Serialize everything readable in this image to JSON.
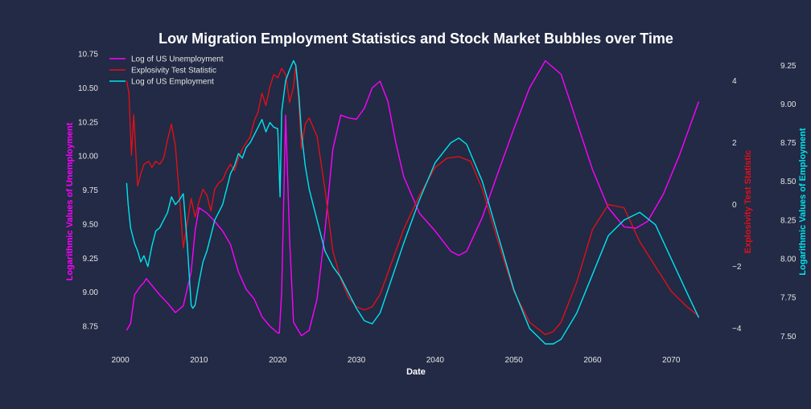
{
  "chart_data": {
    "type": "line",
    "title": "Low Migration Employment Statistics and Stock Market Bubbles over Time",
    "xlabel": "Date",
    "xlim": [
      1998,
      2076
    ],
    "x_ticks": [
      2000,
      2010,
      2020,
      2030,
      2040,
      2050,
      2060,
      2070
    ],
    "grid": false,
    "legend_placement": "top-left",
    "axes": {
      "left": {
        "label": "Logarithmic Values of Unemployment",
        "color": "#ff00ff",
        "ylim": [
          8.62,
          10.78
        ],
        "ticks": [
          8.75,
          9.0,
          9.25,
          9.5,
          9.75,
          10.0,
          10.25,
          10.5,
          10.75
        ],
        "tick_labels": [
          "8.75",
          "9.00",
          "9.25",
          "9.50",
          "9.75",
          "10.00",
          "10.25",
          "10.50",
          "10.75"
        ]
      },
      "right1": {
        "label": "Explosivity Test Statistic",
        "color": "#e0101a",
        "ylim": [
          -4.5,
          5.0
        ],
        "ticks": [
          -4,
          -2,
          0,
          2,
          4
        ],
        "tick_labels": [
          "−4",
          "−2",
          "0",
          "2",
          "4"
        ]
      },
      "right2": {
        "label": "Logarithmic Values of Employment",
        "color": "#00e5ee",
        "ylim": [
          7.45,
          9.35
        ],
        "ticks": [
          7.5,
          7.75,
          8.0,
          8.25,
          8.5,
          8.75,
          9.0,
          9.25
        ],
        "tick_labels": [
          "7.50",
          "7.75",
          "8.00",
          "8.25",
          "8.50",
          "8.75",
          "9.00",
          "9.25"
        ]
      }
    },
    "series": [
      {
        "name": "Log of US Unemployment",
        "axis": "left",
        "color": "#ff00ff",
        "x": [
          2000.8,
          2001.3,
          2001.8,
          2002.5,
          2003.0,
          2003.3,
          2004.0,
          2005.0,
          2006.0,
          2007.0,
          2008.0,
          2009.0,
          2009.5,
          2010.0,
          2011.0,
          2012.0,
          2013.0,
          2014.0,
          2015.0,
          2016.0,
          2017.0,
          2018.0,
          2019.0,
          2020.0,
          2020.2,
          2020.5,
          2021.0,
          2021.5,
          2022.0,
          2023.0,
          2024.0,
          2025.0,
          2026.0,
          2027.0,
          2028.0,
          2029.0,
          2030.0,
          2031.0,
          2032.0,
          2033.0,
          2034.0,
          2035.0,
          2036.0,
          2038.0,
          2040.0,
          2042.0,
          2043.0,
          2044.0,
          2046.0,
          2048.0,
          2050.0,
          2052.0,
          2054.0,
          2056.0,
          2058.0,
          2060.0,
          2062.0,
          2064.0,
          2065.5,
          2067.0,
          2069.0,
          2071.0,
          2073.5
        ],
        "values": [
          8.72,
          8.77,
          8.98,
          9.04,
          9.07,
          9.1,
          9.05,
          8.98,
          8.92,
          8.85,
          8.9,
          9.15,
          9.45,
          9.62,
          9.58,
          9.52,
          9.45,
          9.35,
          9.15,
          9.02,
          8.95,
          8.82,
          8.75,
          8.7,
          8.7,
          9.0,
          10.3,
          9.4,
          8.78,
          8.68,
          8.72,
          8.95,
          9.45,
          10.05,
          10.3,
          10.28,
          10.27,
          10.35,
          10.5,
          10.55,
          10.4,
          10.1,
          9.85,
          9.58,
          9.45,
          9.3,
          9.27,
          9.3,
          9.55,
          9.88,
          10.2,
          10.5,
          10.7,
          10.6,
          10.25,
          9.9,
          9.62,
          9.48,
          9.47,
          9.52,
          9.72,
          10.0,
          10.4
        ]
      },
      {
        "name": "Explosivity Test Statistic",
        "axis": "right1",
        "color": "#e0101a",
        "x": [
          2000.8,
          2001.1,
          2001.4,
          2001.7,
          2002.2,
          2002.6,
          2003.0,
          2003.6,
          2004.0,
          2004.5,
          2005.0,
          2005.5,
          2006.0,
          2006.5,
          2007.0,
          2007.5,
          2008.0,
          2008.5,
          2009.0,
          2009.5,
          2010.0,
          2010.5,
          2011.0,
          2011.5,
          2012.0,
          2012.5,
          2013.0,
          2013.5,
          2014.0,
          2014.5,
          2015.0,
          2015.5,
          2016.0,
          2016.5,
          2017.0,
          2017.5,
          2018.0,
          2018.5,
          2019.0,
          2019.5,
          2020.0,
          2020.5,
          2021.0,
          2021.5,
          2022.0,
          2022.3,
          2022.7,
          2023.0,
          2023.5,
          2024.0,
          2025.0,
          2026.0,
          2027.0,
          2028.0,
          2029.0,
          2030.0,
          2031.0,
          2032.0,
          2033.0,
          2034.0,
          2036.0,
          2038.0,
          2040.0,
          2041.5,
          2043.0,
          2044.5,
          2046.0,
          2048.0,
          2050.0,
          2052.0,
          2054.0,
          2055.0,
          2056.0,
          2058.0,
          2060.0,
          2062.0,
          2064.0,
          2066.0,
          2068.0,
          2070.0,
          2072.0,
          2073.5
        ],
        "values": [
          4.0,
          3.6,
          1.6,
          2.9,
          0.6,
          1.0,
          1.3,
          1.4,
          1.2,
          1.4,
          1.3,
          1.5,
          2.1,
          2.6,
          1.9,
          0.3,
          -1.4,
          -0.6,
          0.2,
          -0.4,
          0.1,
          0.5,
          0.3,
          -0.2,
          0.5,
          0.7,
          0.8,
          1.1,
          1.3,
          1.1,
          1.5,
          1.8,
          2.0,
          2.2,
          2.7,
          3.0,
          3.6,
          3.2,
          3.8,
          4.2,
          4.1,
          4.4,
          4.2,
          3.3,
          3.8,
          4.5,
          3.2,
          1.8,
          2.6,
          2.8,
          2.2,
          0.5,
          -1.5,
          -2.4,
          -3.0,
          -3.3,
          -3.4,
          -3.3,
          -2.9,
          -2.2,
          -0.8,
          0.3,
          1.2,
          1.5,
          1.55,
          1.4,
          0.5,
          -1.2,
          -2.8,
          -3.8,
          -4.2,
          -4.1,
          -3.8,
          -2.5,
          -0.8,
          0.0,
          -0.1,
          -1.2,
          -2.0,
          -2.8,
          -3.3,
          -3.6
        ]
      },
      {
        "name": "Log of US Employment",
        "axis": "right2",
        "color": "#00e5ee",
        "x": [
          2000.8,
          2001.0,
          2001.3,
          2001.8,
          2002.2,
          2002.6,
          2003.0,
          2003.5,
          2004.0,
          2004.5,
          2005.0,
          2005.5,
          2006.0,
          2006.5,
          2007.0,
          2007.5,
          2008.0,
          2008.5,
          2009.0,
          2009.2,
          2009.5,
          2010.0,
          2010.5,
          2011.0,
          2011.5,
          2012.0,
          2012.5,
          2013.0,
          2013.5,
          2014.0,
          2014.5,
          2015.0,
          2015.5,
          2016.0,
          2016.5,
          2017.0,
          2017.5,
          2018.0,
          2018.5,
          2019.0,
          2019.5,
          2020.0,
          2020.3,
          2020.5,
          2021.0,
          2021.5,
          2022.0,
          2022.3,
          2022.7,
          2023.0,
          2023.5,
          2024.0,
          2025.0,
          2026.0,
          2027.0,
          2028.0,
          2029.0,
          2030.0,
          2031.0,
          2032.0,
          2033.0,
          2034.0,
          2036.0,
          2038.0,
          2040.0,
          2042.0,
          2043.0,
          2044.0,
          2046.0,
          2048.0,
          2050.0,
          2052.0,
          2054.0,
          2055.0,
          2056.0,
          2058.0,
          2060.0,
          2062.0,
          2064.0,
          2066.0,
          2068.0,
          2070.0,
          2072.0,
          2073.5
        ],
        "values": [
          8.49,
          8.35,
          8.2,
          8.1,
          8.05,
          7.98,
          8.02,
          7.95,
          8.08,
          8.18,
          8.2,
          8.25,
          8.3,
          8.4,
          8.35,
          8.38,
          8.42,
          8.1,
          7.7,
          7.68,
          7.7,
          7.85,
          7.98,
          8.05,
          8.15,
          8.25,
          8.3,
          8.35,
          8.45,
          8.55,
          8.6,
          8.68,
          8.65,
          8.72,
          8.75,
          8.8,
          8.85,
          8.9,
          8.82,
          8.88,
          8.85,
          8.84,
          8.4,
          8.95,
          9.15,
          9.22,
          9.28,
          9.25,
          9.05,
          8.82,
          8.6,
          8.45,
          8.25,
          8.05,
          7.95,
          7.88,
          7.78,
          7.68,
          7.6,
          7.58,
          7.65,
          7.8,
          8.1,
          8.38,
          8.62,
          8.75,
          8.78,
          8.74,
          8.5,
          8.15,
          7.8,
          7.55,
          7.45,
          7.45,
          7.48,
          7.65,
          7.9,
          8.15,
          8.25,
          8.3,
          8.22,
          8.0,
          7.78,
          7.62
        ]
      }
    ]
  }
}
